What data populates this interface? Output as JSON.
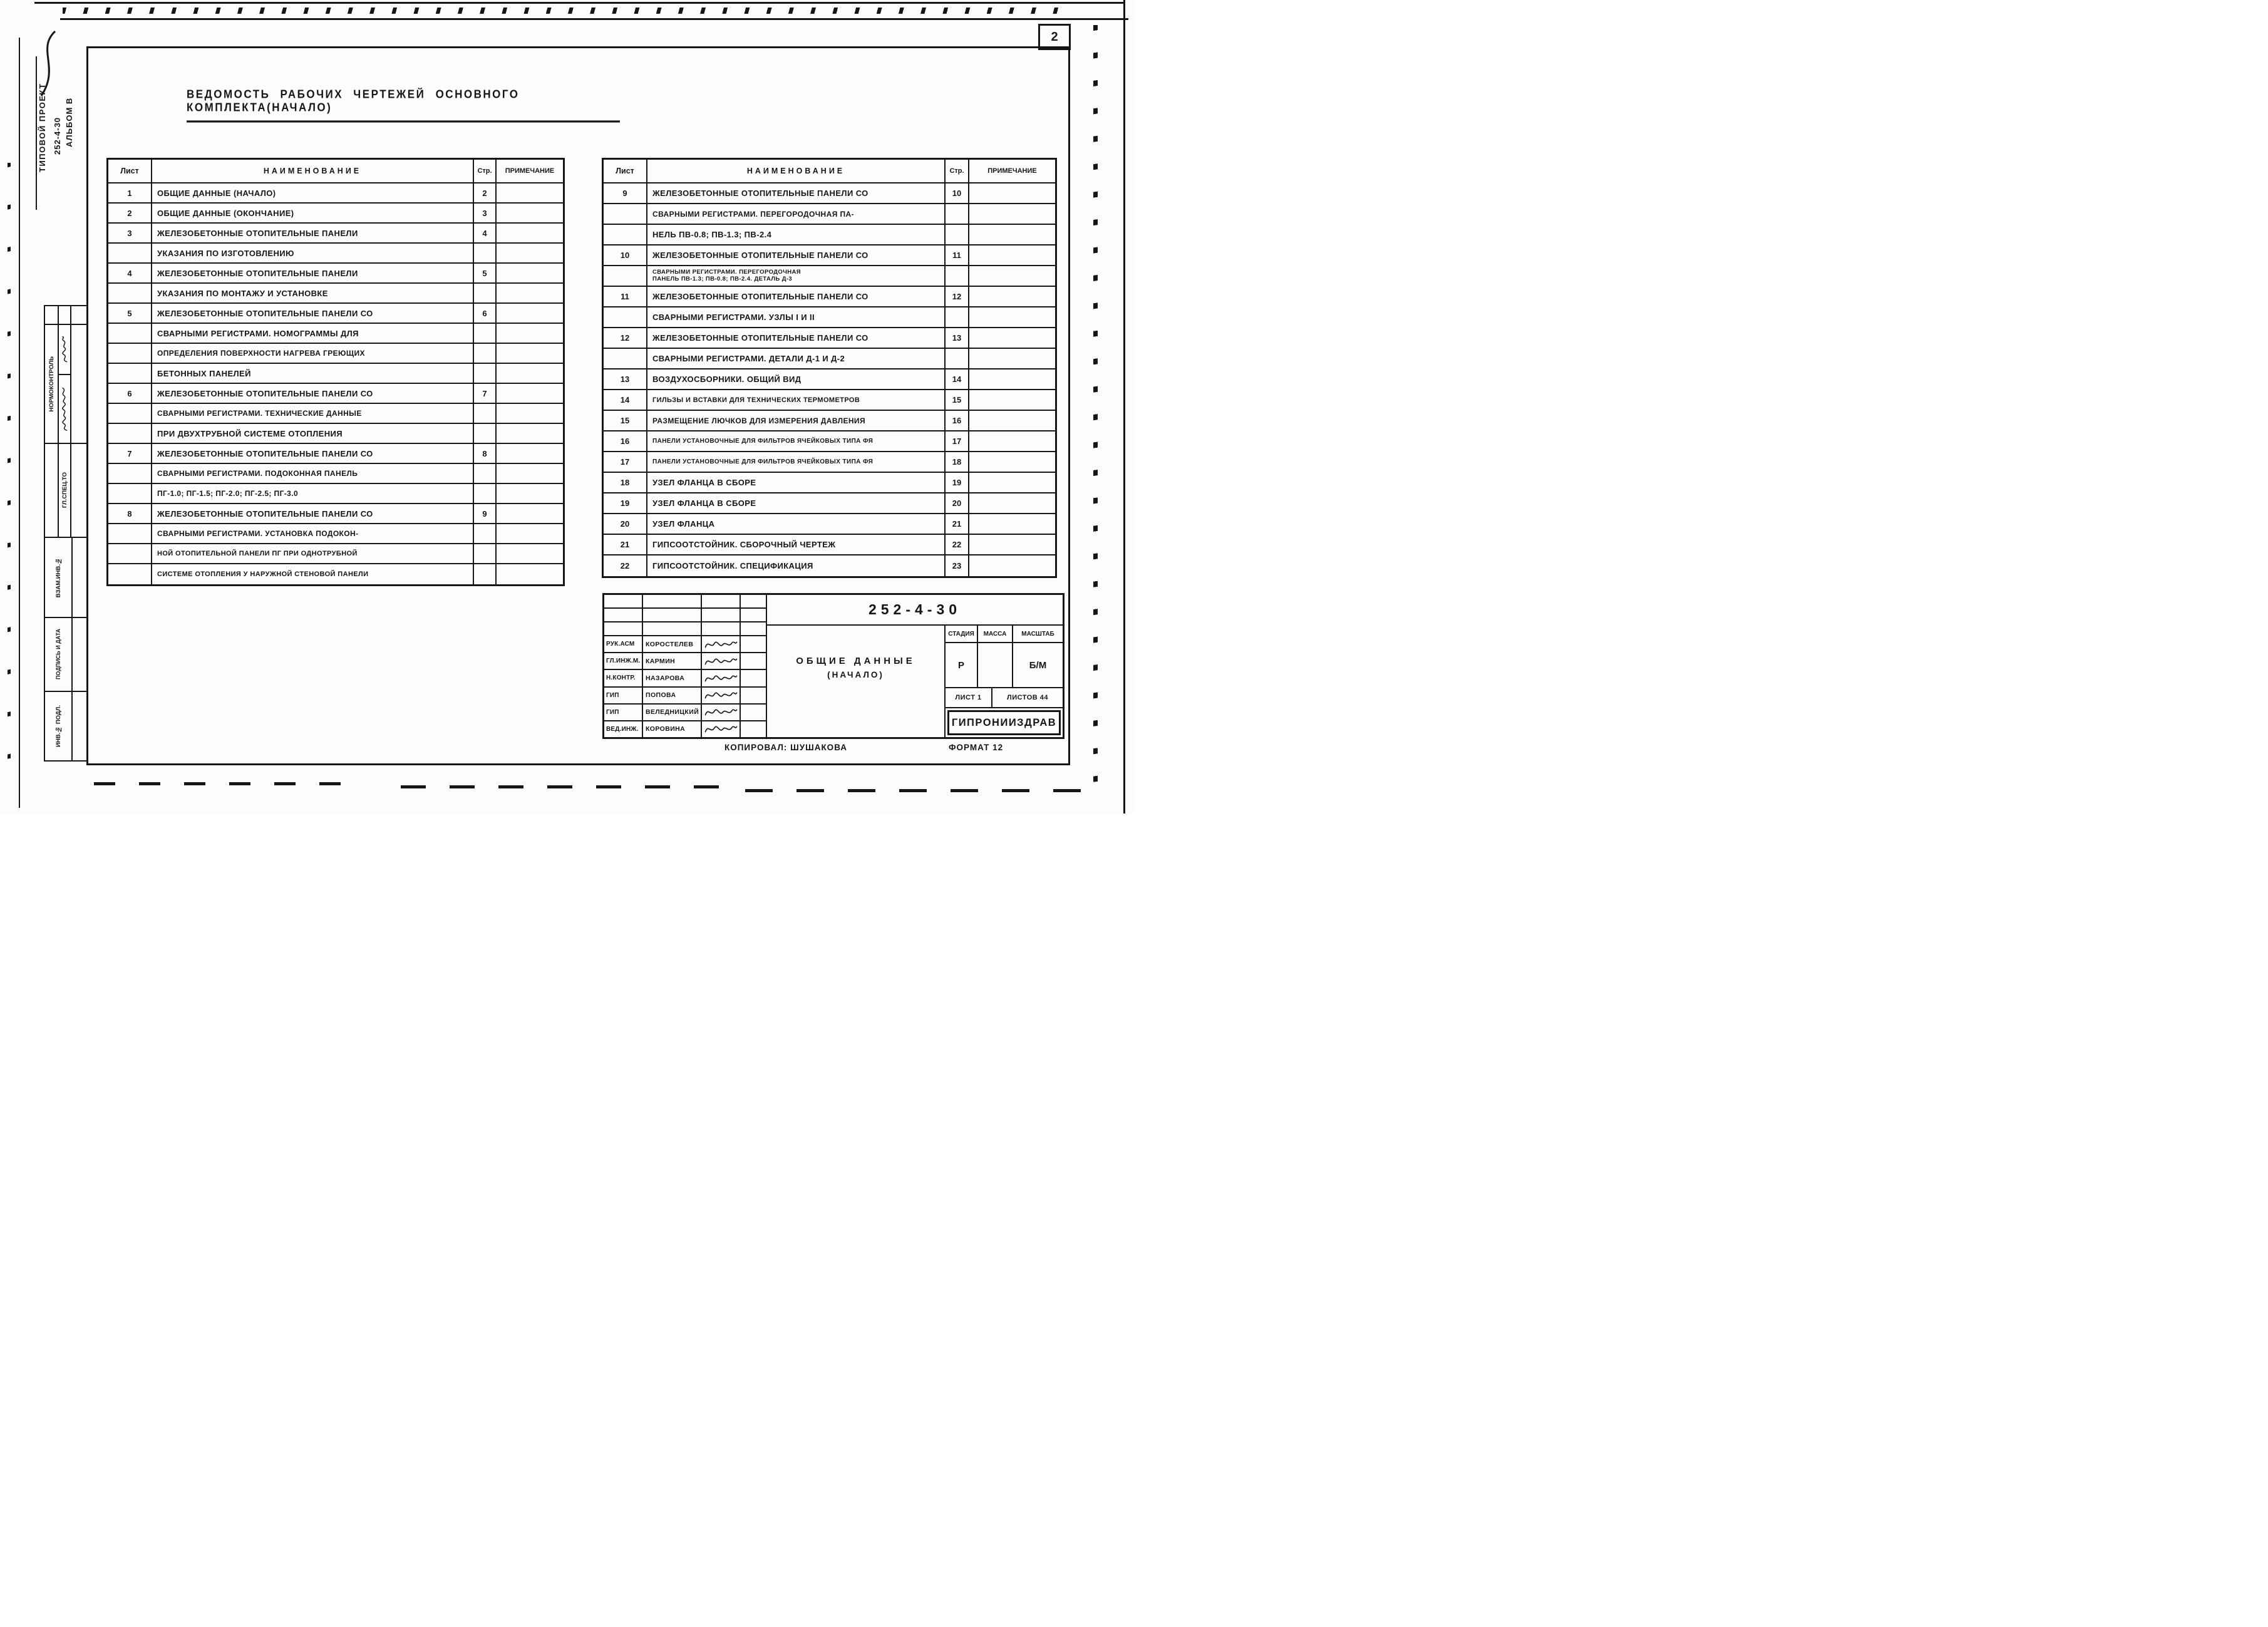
{
  "page": {
    "number": "2",
    "title": "ВЕДОМОСТЬ РАБОЧИХ ЧЕРТЕЖЕЙ ОСНОВНОГО КОМПЛЕКТА(НАЧАЛО)",
    "copied": "КОПИРОВАЛ: ШУШАКОВА",
    "format": "ФОРМАТ 12"
  },
  "side_column": {
    "project_line1": "ТИПОВОЙ ПРОЕКТ",
    "project_line2": "252-4-30",
    "project_line3": "АЛЬБОМ В",
    "norm_control": "НОРМОКОНТРОЛЬ",
    "spec": "ГЛ.СПЕЦ.ТО",
    "vzam": "ВЗАМ.ИНВ.№",
    "sign_date": "ПОДПИСЬ И ДАТА",
    "inv": "ИНВ.№ ПОДЛ."
  },
  "tables": {
    "headers": {
      "sheet": "Лист",
      "name": "НАИМЕНОВАНИЕ",
      "page": "Стр.",
      "note": "ПРИМЕЧАНИЕ"
    },
    "left_rows": [
      {
        "n": "1",
        "text": "ОБЩИЕ ДАННЫЕ (НАЧАЛО)",
        "p": "2"
      },
      {
        "n": "2",
        "text": "ОБЩИЕ ДАННЫЕ (ОКОНЧАНИЕ)",
        "p": "3"
      },
      {
        "n": "3",
        "text": "ЖЕЛЕЗОБЕТОННЫЕ ОТОПИТЕЛЬНЫЕ ПАНЕЛИ",
        "p": "4"
      },
      {
        "n": "",
        "text": "УКАЗАНИЯ ПО ИЗГОТОВЛЕНИЮ",
        "p": ""
      },
      {
        "n": "4",
        "text": "ЖЕЛЕЗОБЕТОННЫЕ ОТОПИТЕЛЬНЫЕ ПАНЕЛИ",
        "p": "5"
      },
      {
        "n": "",
        "text": "УКАЗАНИЯ ПО МОНТАЖУ И УСТАНОВКЕ",
        "p": ""
      },
      {
        "n": "5",
        "text": "ЖЕЛЕЗОБЕТОННЫЕ ОТОПИТЕЛЬНЫЕ ПАНЕЛИ СО",
        "p": "6"
      },
      {
        "n": "",
        "text": "СВАРНЫМИ РЕГИСТРАМИ. НОМОГРАММЫ ДЛЯ",
        "p": ""
      },
      {
        "n": "",
        "text": "ОПРЕДЕЛЕНИЯ ПОВЕРХНОСТИ НАГРЕВА ГРЕЮЩИХ",
        "p": ""
      },
      {
        "n": "",
        "text": "БЕТОННЫХ ПАНЕЛЕЙ",
        "p": ""
      },
      {
        "n": "6",
        "text": "ЖЕЛЕЗОБЕТОННЫЕ ОТОПИТЕЛЬНЫЕ ПАНЕЛИ СО",
        "p": "7"
      },
      {
        "n": "",
        "text": "СВАРНЫМИ РЕГИСТРАМИ. ТЕХНИЧЕСКИЕ ДАННЫЕ",
        "p": ""
      },
      {
        "n": "",
        "text": "ПРИ ДВУХТРУБНОЙ СИСТЕМЕ ОТОПЛЕНИЯ",
        "p": ""
      },
      {
        "n": "7",
        "text": "ЖЕЛЕЗОБЕТОННЫЕ ОТОПИТЕЛЬНЫЕ ПАНЕЛИ СО",
        "p": "8"
      },
      {
        "n": "",
        "text": "СВАРНЫМИ РЕГИСТРАМИ. ПОДОКОННАЯ ПАНЕЛЬ",
        "p": ""
      },
      {
        "n": "",
        "text": "ПГ-1.0; ПГ-1.5; ПГ-2.0; ПГ-2.5; ПГ-3.0",
        "p": ""
      },
      {
        "n": "8",
        "text": "ЖЕЛЕЗОБЕТОННЫЕ ОТОПИТЕЛЬНЫЕ ПАНЕЛИ СО",
        "p": "9"
      },
      {
        "n": "",
        "text": "СВАРНЫМИ РЕГИСТРАМИ. УСТАНОВКА ПОДОКОН-",
        "p": ""
      },
      {
        "n": "",
        "text": "НОЙ ОТОПИТЕЛЬНОЙ ПАНЕЛИ ПГ ПРИ ОДНОТРУБНОЙ",
        "p": ""
      },
      {
        "n": "",
        "text": "СИСТЕМЕ ОТОПЛЕНИЯ У НАРУЖНОЙ СТЕНОВОЙ ПАНЕЛИ",
        "p": ""
      }
    ],
    "right_rows": [
      {
        "n": "9",
        "text": "ЖЕЛЕЗОБЕТОННЫЕ ОТОПИТЕЛЬНЫЕ ПАНЕЛИ СО",
        "p": "10"
      },
      {
        "n": "",
        "text": "СВАРНЫМИ РЕГИСТРАМИ. ПЕРЕГОРОДОЧНАЯ ПА-",
        "p": ""
      },
      {
        "n": "",
        "text": "НЕЛЬ ПВ-0.8; ПВ-1.3; ПВ-2.4",
        "p": ""
      },
      {
        "n": "10",
        "text": "ЖЕЛЕЗОБЕТОННЫЕ ОТОПИТЕЛЬНЫЕ ПАНЕЛИ СО",
        "p": "11"
      },
      {
        "n": "",
        "text": "СВАРНЫМИ РЕГИСТРАМИ. ПЕРЕГОРОДОЧНАЯ",
        "text2": "ПАНЕЛЬ ПВ-1.3; ПВ-0.8; ПВ-2.4. ДЕТАЛЬ Д-3",
        "p": ""
      },
      {
        "n": "11",
        "text": "ЖЕЛЕЗОБЕТОННЫЕ ОТОПИТЕЛЬНЫЕ ПАНЕЛИ СО",
        "p": "12"
      },
      {
        "n": "",
        "text": "СВАРНЫМИ РЕГИСТРАМИ. УЗЛЫ I И II",
        "p": ""
      },
      {
        "n": "12",
        "text": "ЖЕЛЕЗОБЕТОННЫЕ ОТОПИТЕЛЬНЫЕ ПАНЕЛИ СО",
        "p": "13"
      },
      {
        "n": "",
        "text": "СВАРНЫМИ РЕГИСТРАМИ. ДЕТАЛИ Д-1 И Д-2",
        "p": ""
      },
      {
        "n": "13",
        "text": "ВОЗДУХОСБОРНИКИ. ОБЩИЙ ВИД",
        "p": "14"
      },
      {
        "n": "14",
        "text": "ГИЛЬЗЫ И ВСТАВКИ ДЛЯ ТЕХНИЧЕСКИХ ТЕРМОМЕТРОВ",
        "p": "15"
      },
      {
        "n": "15",
        "text": "РАЗМЕЩЕНИЕ ЛЮЧКОВ ДЛЯ ИЗМЕРЕНИЯ ДАВЛЕНИЯ",
        "p": "16"
      },
      {
        "n": "16",
        "text": "ПАНЕЛИ УСТАНОВОЧНЫЕ ДЛЯ ФИЛЬТРОВ ЯЧЕЙКОВЫХ ТИПА ФЯ",
        "p": "17"
      },
      {
        "n": "17",
        "text": "ПАНЕЛИ УСТАНОВОЧНЫЕ ДЛЯ ФИЛЬТРОВ ЯЧЕЙКОВЫХ ТИПА ФЯ",
        "p": "18"
      },
      {
        "n": "18",
        "text": "УЗЕЛ ФЛАНЦА В СБОРЕ",
        "p": "19"
      },
      {
        "n": "19",
        "text": "УЗЕЛ ФЛАНЦА В СБОРЕ",
        "p": "20"
      },
      {
        "n": "20",
        "text": "УЗЕЛ ФЛАНЦА",
        "p": "21"
      },
      {
        "n": "21",
        "text": "ГИПСООТСТОЙНИК. СБОРОЧНЫЙ ЧЕРТЕЖ",
        "p": "22"
      },
      {
        "n": "22",
        "text": "ГИПСООТСТОЙНИК. СПЕЦИФИКАЦИЯ",
        "p": "23"
      }
    ]
  },
  "title_block": {
    "project_number": "252-4-30",
    "doc_title": "ОБЩИЕ ДАННЫЕ",
    "doc_subtitle": "(НАЧАЛО)",
    "stage_label": "СТАДИЯ",
    "mass_label": "МАССА",
    "scale_label": "МАСШТАБ",
    "stage_value": "Р",
    "mass_value": "",
    "scale_value": "Б/М",
    "sheet_info": "ЛИСТ 1",
    "sheets_info": "ЛИСТОВ 44",
    "organization": "ГИПРОНИИЗДРАВ",
    "signatures": [
      {
        "role": "РУК.АСМ",
        "name": "КОРОСТЕЛЕВ"
      },
      {
        "role": "ГЛ.ИНЖ.М.",
        "name": "КАРМИН"
      },
      {
        "role": "Н.КОНТР.",
        "name": "НАЗАРОВА"
      },
      {
        "role": "ГИП",
        "name": "ПОПОВА"
      },
      {
        "role": "ГИП",
        "name": "ВЕЛЕДНИЦКИЙ"
      },
      {
        "role": "ВЕД.ИНЖ.",
        "name": "КОРОВИНА"
      }
    ]
  }
}
